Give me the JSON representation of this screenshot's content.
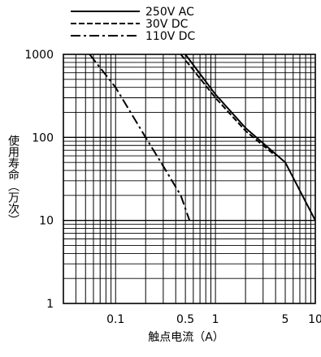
{
  "chart_data": {
    "type": "line",
    "title": "",
    "xlabel": "触点电流（A）",
    "ylabel": "使用寿命（万次）",
    "x_scale": "log",
    "y_scale": "log",
    "xlim": [
      0.03,
      10
    ],
    "ylim": [
      1,
      1000
    ],
    "grid": true,
    "legend_position": "top",
    "x_tick_labels": [
      {
        "value": 0.1,
        "label": "0.1"
      },
      {
        "value": 0.5,
        "label": "0.5"
      },
      {
        "value": 1,
        "label": "1"
      },
      {
        "value": 5,
        "label": "5"
      },
      {
        "value": 10,
        "label": "10"
      }
    ],
    "y_tick_labels": [
      {
        "value": 1,
        "label": "1"
      },
      {
        "value": 10,
        "label": "10"
      },
      {
        "value": 100,
        "label": "100"
      },
      {
        "value": 1000,
        "label": "1000"
      }
    ],
    "series": [
      {
        "name": "250V AC",
        "line_style": "solid",
        "color": "#000000",
        "points": [
          [
            0.5,
            1000
          ],
          [
            1,
            330
          ],
          [
            2,
            130
          ],
          [
            5,
            50
          ],
          [
            10,
            10
          ]
        ]
      },
      {
        "name": "30V DC",
        "line_style": "dashed",
        "color": "#000000",
        "points": [
          [
            0.45,
            1000
          ],
          [
            1,
            300
          ],
          [
            2,
            120
          ],
          [
            4,
            60
          ]
        ]
      },
      {
        "name": "110V DC",
        "line_style": "dashdot",
        "color": "#000000",
        "points": [
          [
            0.055,
            1000
          ],
          [
            0.1,
            400
          ],
          [
            0.2,
            100
          ],
          [
            0.3,
            45
          ],
          [
            0.45,
            20
          ],
          [
            0.55,
            10
          ]
        ]
      }
    ]
  }
}
